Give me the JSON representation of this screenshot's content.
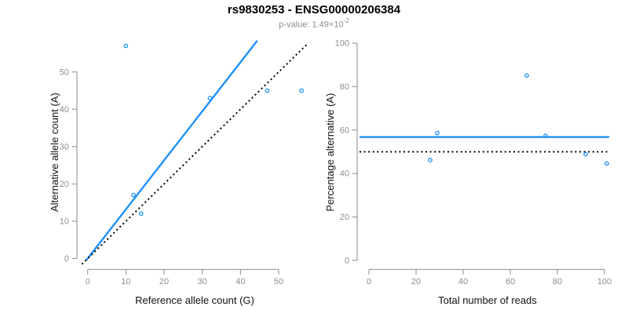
{
  "header": {
    "title": "rs9830253 - ENSG00000206384",
    "subtitle_text": "p-value: 1.49×10",
    "subtitle_exponent": "-2"
  },
  "colors": {
    "accent_blue": "#1E90FF",
    "line_black": "#000000",
    "axis_gray": "#8a8a8a",
    "tick_label_gray": "#8e8e8e",
    "text_black": "#111111"
  },
  "chart_data": [
    {
      "id": "allele-counts",
      "type": "scatter",
      "xlabel": "Reference allele count (G)",
      "ylabel": "Alternative allele count (A)",
      "x_ticks": [
        0,
        10,
        20,
        30,
        40,
        50
      ],
      "y_ticks": [
        0,
        10,
        20,
        30,
        40,
        50
      ],
      "xlim": [
        -2.3,
        58.3
      ],
      "ylim": [
        -2.3,
        59.3
      ],
      "grid": false,
      "points": [
        [
          10,
          57
        ],
        [
          12,
          17
        ],
        [
          14,
          12
        ],
        [
          32,
          43
        ],
        [
          47,
          45
        ],
        [
          56,
          45
        ]
      ],
      "lines": [
        {
          "name": "fit-line",
          "x1": -0.4,
          "y1": -0.5,
          "x2": 44.4,
          "y2": 58.4,
          "style": "solid",
          "color": "accent_blue"
        },
        {
          "name": "identity-line",
          "x1": -1.5,
          "y1": -1.5,
          "x2": 57.5,
          "y2": 57.5,
          "style": "dotted",
          "color": "line_black"
        }
      ]
    },
    {
      "id": "percentage-alternative",
      "type": "scatter",
      "xlabel": "Total number of reads",
      "ylabel": "Percentage alternative (A)",
      "x_ticks": [
        0,
        20,
        40,
        60,
        80,
        100
      ],
      "y_ticks": [
        0,
        20,
        40,
        60,
        80,
        100
      ],
      "xlim": [
        -4,
        105
      ],
      "ylim": [
        -4,
        104
      ],
      "grid": false,
      "points": [
        [
          29,
          58.6
        ],
        [
          26,
          46.2
        ],
        [
          67,
          85.1
        ],
        [
          75,
          57.3
        ],
        [
          92,
          48.9
        ],
        [
          101,
          44.6
        ]
      ],
      "lines": [
        {
          "name": "mean-line",
          "x1": -4,
          "y1": 56.8,
          "x2": 102,
          "y2": 56.8,
          "style": "solid",
          "color": "accent_blue"
        },
        {
          "name": "reference-line",
          "x1": -4,
          "y1": 50,
          "x2": 102,
          "y2": 50,
          "style": "dotted",
          "color": "line_black"
        }
      ]
    }
  ]
}
